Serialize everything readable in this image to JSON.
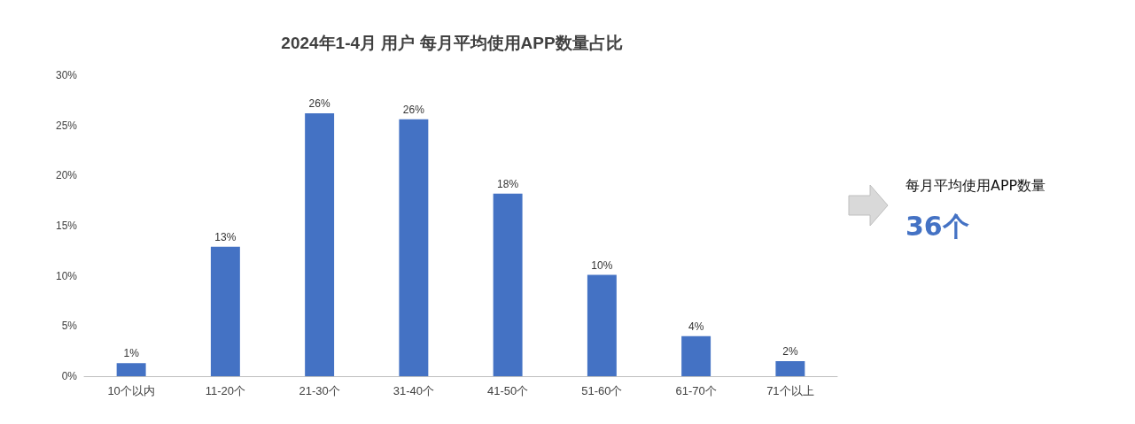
{
  "chart_data": {
    "type": "bar",
    "title": "2024年1-4月 用户 每月平均使用APP数量占比",
    "categories": [
      "10个以内",
      "11-20个",
      "21-30个",
      "31-40个",
      "41-50个",
      "51-60个",
      "61-70个",
      "71个以上"
    ],
    "values": [
      1.3,
      12.9,
      26.2,
      25.6,
      18.2,
      10.1,
      4.0,
      1.5
    ],
    "value_labels": [
      "1%",
      "13%",
      "26%",
      "26%",
      "18%",
      "10%",
      "4%",
      "2%"
    ],
    "color": "#4472c4",
    "ylim": [
      0,
      30
    ],
    "yticks": [
      {
        "value": 0,
        "label": "0%"
      },
      {
        "value": 5,
        "label": "5%"
      },
      {
        "value": 10,
        "label": "10%"
      },
      {
        "value": 15,
        "label": "15%"
      },
      {
        "value": 20,
        "label": "20%"
      },
      {
        "value": 25,
        "label": "25%"
      },
      {
        "value": 30,
        "label": "30%"
      }
    ],
    "grid": false,
    "annotations": [
      "每月平均使用APP数量",
      "36个"
    ]
  }
}
